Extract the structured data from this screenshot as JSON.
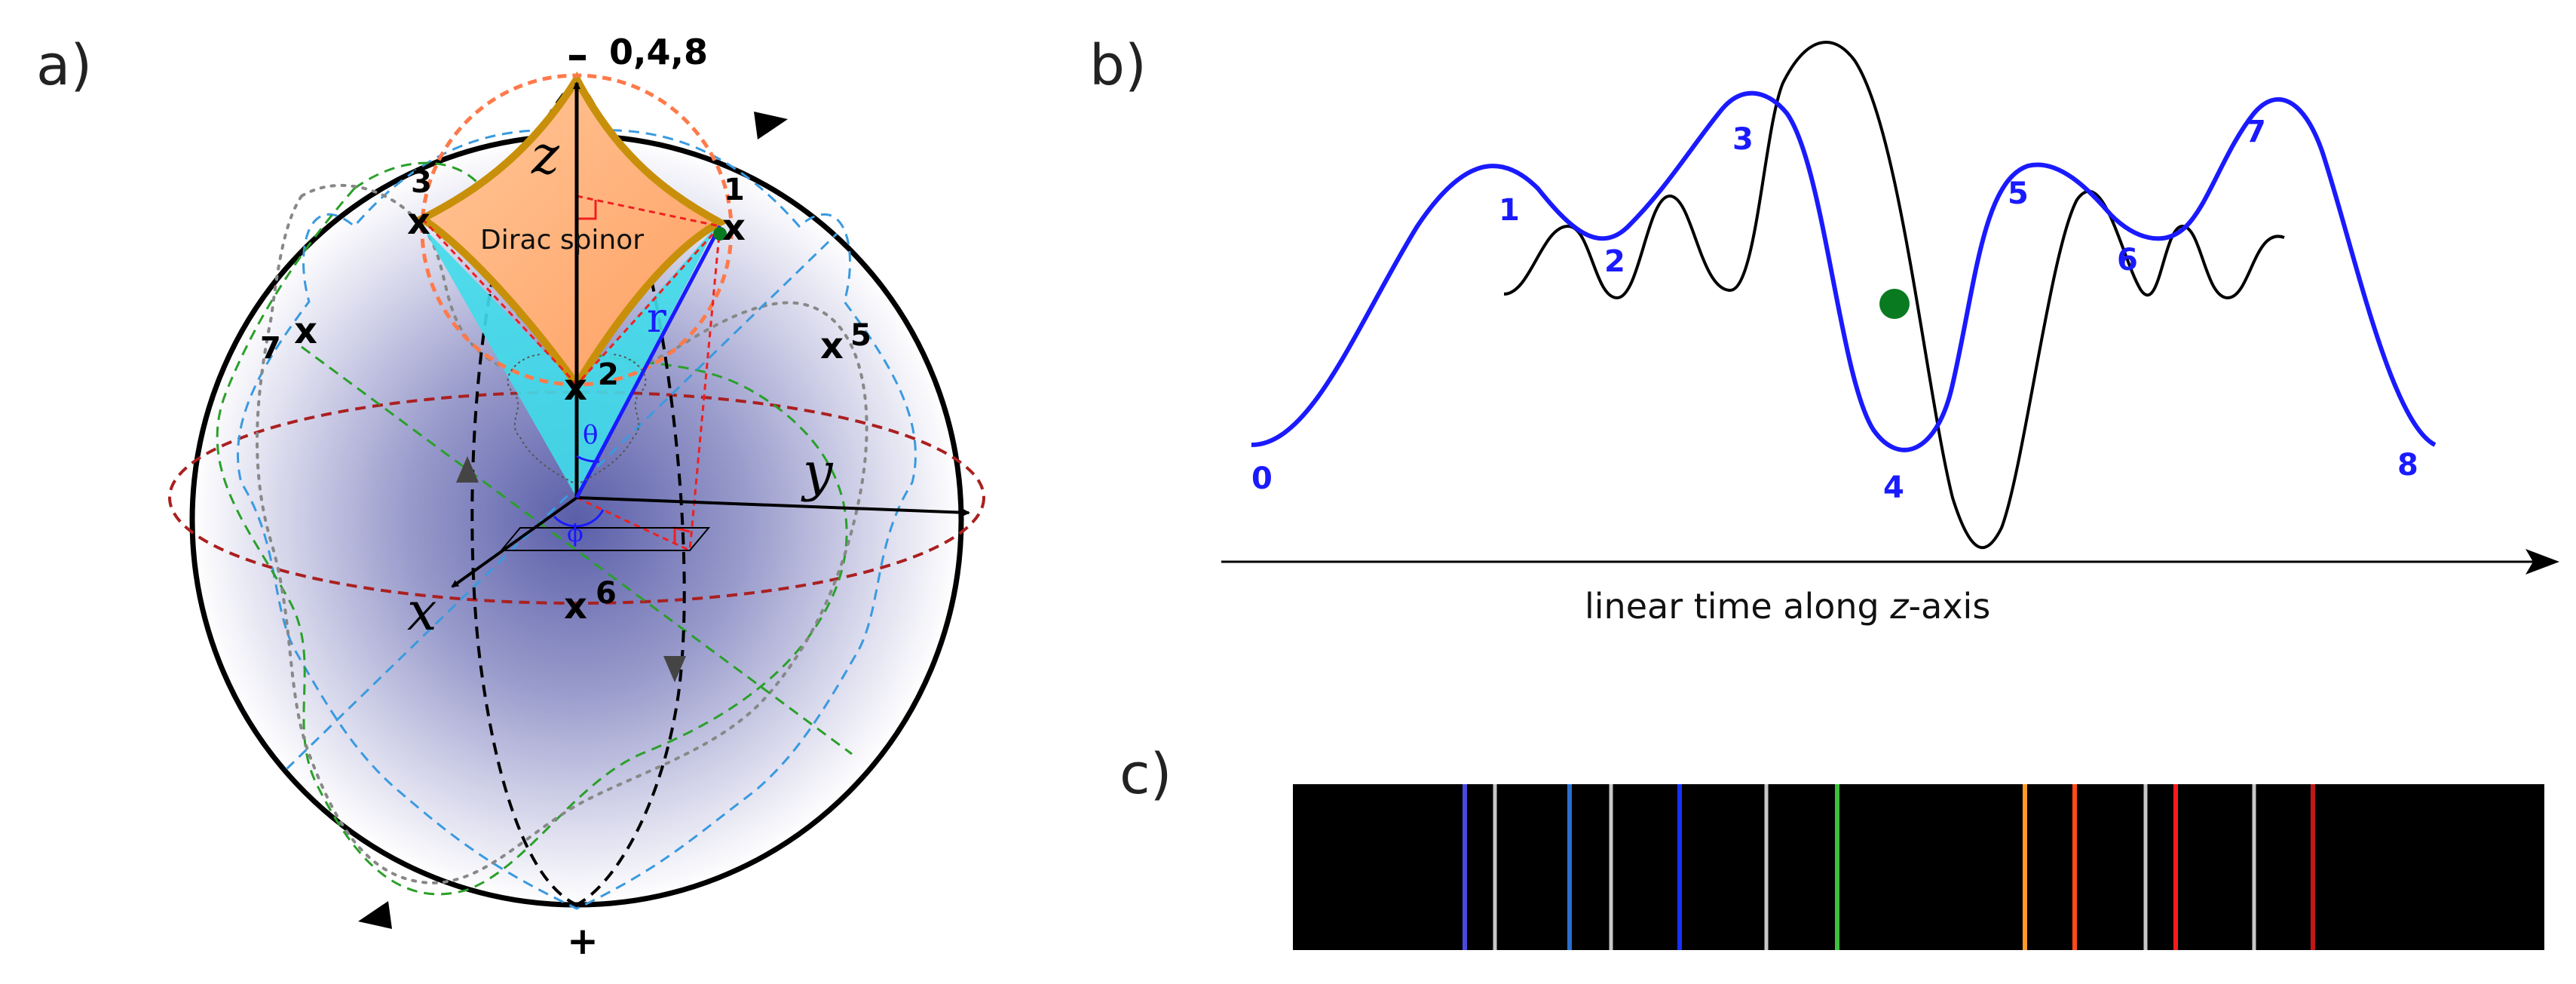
{
  "panels": {
    "a": {
      "label": "a)"
    },
    "b": {
      "label": "b)"
    },
    "c": {
      "label": "c)"
    }
  },
  "panel_a": {
    "pole_top": "–",
    "pole_top_points": "0,4,8",
    "pole_bottom": "+",
    "axis_z": "z",
    "axis_y": "y",
    "axis_x": "x",
    "vector_r": "r",
    "angle_theta": "θ",
    "angle_phi": "ϕ",
    "spinor_label": "Dirac spinor",
    "markers": [
      {
        "mark": "x",
        "num": "1"
      },
      {
        "mark": "x",
        "num": "2"
      },
      {
        "mark": "x",
        "num": "3"
      },
      {
        "mark": "x",
        "num": "5"
      },
      {
        "mark": "x",
        "num": "6"
      },
      {
        "mark": "x",
        "num": "7"
      }
    ]
  },
  "panel_b": {
    "xlabel_pre": "linear time along ",
    "xlabel_var": "z",
    "xlabel_post": "-axis",
    "points": [
      "0",
      "1",
      "2",
      "3",
      "4",
      "5",
      "6",
      "7",
      "8"
    ]
  },
  "panel_c": {
    "lines": [
      {
        "color": "#4a4adf"
      },
      {
        "color": "#2a6fcf"
      },
      {
        "color": "#1a2fff"
      },
      {
        "color": "#3fbf3f"
      },
      {
        "color": "#ff9a2a"
      },
      {
        "color": "#ff4a1a"
      },
      {
        "color": "#ff1a1a"
      },
      {
        "color": "#c01818"
      }
    ]
  },
  "colors": {
    "blue_curve": "#1a1aff",
    "black_curve": "#000000",
    "green_dot": "#0a7a20",
    "spinor_fill": "#ffb27a",
    "cone_fill": "#40dcea",
    "dashed_red": "#cc2020",
    "dashed_green": "#2aa02a",
    "dashed_blue": "#3a9adf"
  }
}
